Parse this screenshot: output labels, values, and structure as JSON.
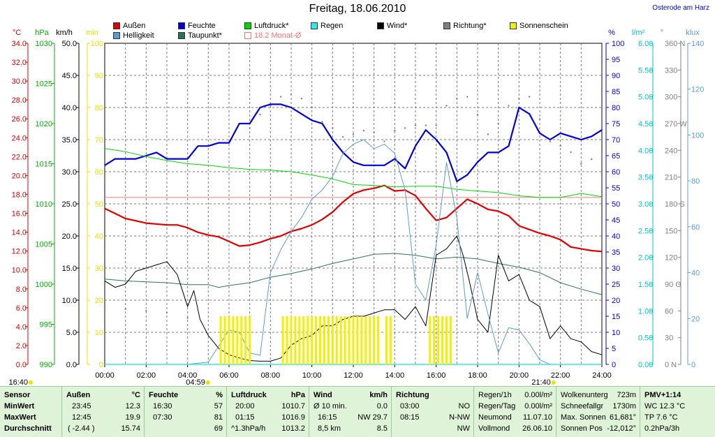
{
  "header": {
    "title": "Freitag, 18.06.2010",
    "location": "Osterode am Harz"
  },
  "legend": [
    {
      "label": "Außen",
      "color": "#e00000"
    },
    {
      "label": "Feuchte",
      "color": "#0000d8"
    },
    {
      "label": "Luftdruck*",
      "color": "#00d800"
    },
    {
      "label": "Regen",
      "color": "#30e8e8"
    },
    {
      "label": "Wind*",
      "color": "#000000"
    },
    {
      "label": "Richtung*",
      "color": "#808080"
    },
    {
      "label": "Sonnenschein",
      "color": "#f0f000"
    },
    {
      "label": "Helligkeit",
      "color": "#5b9bd5"
    },
    {
      "label": "Taupunkt*",
      "color": "#2e7060"
    },
    {
      "label": "18.2 Monat-Ø",
      "color": "#ff8080"
    }
  ],
  "chart_data": {
    "type": "line",
    "title": "Freitag, 18.06.2010",
    "x_range": [
      0,
      24
    ],
    "x_ticks": [
      "00:00",
      "02:00",
      "04:00",
      "06:00",
      "08:00",
      "10:00",
      "12:00",
      "14:00",
      "16:00",
      "18:00",
      "20:00",
      "22:00",
      "24:00"
    ],
    "axes": {
      "temp_c": {
        "label": "°C",
        "ticks": [
          "0.0",
          "2.0",
          "4.0",
          "6.0",
          "8.0",
          "10.0",
          "12.0",
          "14.0",
          "16.0",
          "18.0",
          "20.0",
          "22.0",
          "24.0",
          "26.0",
          "28.0",
          "30.0",
          "32.0",
          "34.0"
        ],
        "range": [
          0,
          35
        ]
      },
      "pressure_hpa": {
        "label": "hPa",
        "ticks": [
          "990",
          "995",
          "1000",
          "1005",
          "1010",
          "1015",
          "1020",
          "1025",
          "1030"
        ],
        "range": [
          990,
          1030
        ]
      },
      "wind_kmh": {
        "label": "km/h",
        "ticks": [
          "0.0",
          "5.0",
          "10.0",
          "15.0",
          "20.0",
          "25.0",
          "30.0",
          "35.0",
          "40.0",
          "45.0",
          "50.0"
        ],
        "range": [
          0,
          50
        ]
      },
      "sun_min": {
        "label": "min",
        "ticks": [
          "0",
          "10",
          "20",
          "30",
          "40",
          "50",
          "60",
          "70",
          "80",
          "90",
          "100"
        ],
        "range": [
          0,
          100
        ]
      },
      "humidity_pct": {
        "label": "%",
        "ticks": [
          "0",
          "5",
          "10",
          "15",
          "20",
          "25",
          "30",
          "35",
          "40",
          "45",
          "50",
          "55",
          "60",
          "65",
          "70",
          "75",
          "80",
          "85",
          "90",
          "95",
          "100"
        ],
        "range": [
          0,
          100
        ]
      },
      "rain_lm2": {
        "label": "l/m²",
        "ticks": [
          "0.00",
          "0.50",
          "1.00",
          "1.50",
          "2.00",
          "2.50",
          "3.00",
          "3.50",
          "4.00",
          "4.50",
          "5.00",
          "5.50",
          "6.00"
        ],
        "range": [
          0,
          6
        ]
      },
      "direction_deg": {
        "label": "°",
        "ticks": [
          "0 N",
          "30",
          "60",
          "90 O",
          "120",
          "150",
          "180 S",
          "210",
          "240",
          "270 W",
          "300",
          "330",
          "360 N"
        ],
        "range": [
          0,
          360
        ]
      },
      "brightness_klux": {
        "label": "klux",
        "ticks": [
          "0",
          "20",
          "40",
          "60",
          "80",
          "100",
          "120",
          "140"
        ],
        "range": [
          0,
          140
        ]
      }
    },
    "series": [
      {
        "name": "Außen",
        "axis": "temp_c",
        "x": [
          0,
          1,
          2,
          3,
          3.5,
          4,
          4.5,
          5,
          5.5,
          6,
          6.5,
          7,
          7.5,
          8,
          8.5,
          9,
          9.5,
          10,
          10.5,
          11,
          11.5,
          12,
          12.5,
          13,
          13.5,
          14,
          14.5,
          15,
          15.5,
          16,
          16.5,
          17,
          17.5,
          18,
          18.5,
          19,
          19.5,
          20,
          20.5,
          21,
          21.5,
          22,
          22.5,
          23,
          23.5,
          24
        ],
        "values": [
          17.0,
          15.9,
          15.4,
          15.2,
          15.2,
          14.9,
          14.4,
          14.1,
          13.9,
          13.4,
          12.9,
          13.0,
          13.3,
          13.7,
          14.0,
          14.5,
          14.8,
          15.2,
          15.8,
          16.6,
          17.7,
          18.6,
          19.0,
          19.2,
          19.5,
          18.9,
          19.0,
          18.4,
          17.0,
          15.7,
          16.0,
          17.0,
          18.0,
          17.5,
          16.9,
          16.7,
          16.2,
          15.1,
          14.7,
          14.3,
          14.0,
          13.6,
          12.8,
          12.6,
          12.4,
          12.3
        ]
      },
      {
        "name": "Feuchte",
        "axis": "humidity_pct",
        "x": [
          0,
          0.5,
          1,
          1.5,
          2,
          2.5,
          3,
          3.5,
          4,
          4.5,
          5,
          5.5,
          6,
          6.5,
          7,
          7.5,
          8,
          8.5,
          9,
          9.5,
          10,
          10.5,
          11,
          11.5,
          12,
          12.5,
          13,
          13.5,
          14,
          14.5,
          15,
          15.5,
          16,
          16.5,
          17,
          17.5,
          18,
          18.5,
          19,
          19.5,
          20,
          20.5,
          21,
          21.5,
          22,
          22.5,
          23,
          23.5,
          24
        ],
        "values": [
          62,
          64,
          64,
          64,
          65,
          66,
          64,
          64,
          64,
          68,
          68,
          69,
          69,
          75,
          75,
          80,
          81,
          81,
          80,
          78,
          76,
          75,
          70,
          66,
          63,
          62,
          62,
          62,
          64,
          61,
          68,
          73,
          70,
          66,
          57,
          59,
          63,
          66,
          66,
          68,
          80,
          78,
          72,
          70,
          72,
          71,
          70,
          71,
          73
        ]
      },
      {
        "name": "Luftdruck*",
        "axis": "pressure_hpa",
        "x": [
          0,
          1,
          2,
          3,
          4,
          5,
          6,
          7,
          8,
          9,
          10,
          11,
          12,
          13,
          14,
          15,
          16,
          17,
          18,
          19,
          20,
          21,
          22,
          23,
          24
        ],
        "values": [
          1016.9,
          1016.5,
          1015.9,
          1015.4,
          1015.0,
          1014.8,
          1014.5,
          1014.3,
          1014.2,
          1014.0,
          1013.6,
          1013.1,
          1012.4,
          1012.3,
          1012.1,
          1012.2,
          1012.2,
          1011.8,
          1011.6,
          1011.4,
          1011.0,
          1010.8,
          1010.8,
          1011.3,
          1010.9
        ]
      },
      {
        "name": "Taupunkt*",
        "axis": "temp_c",
        "x": [
          0,
          1,
          2,
          3,
          4,
          5,
          5.5,
          6,
          7,
          8,
          9,
          10,
          11,
          12,
          13,
          14,
          15,
          16,
          17,
          18,
          19,
          20,
          21,
          22,
          23,
          24
        ],
        "values": [
          9.3,
          9.1,
          9.0,
          8.9,
          8.7,
          8.7,
          8.4,
          8.6,
          8.9,
          9.5,
          9.9,
          10.4,
          11.0,
          11.5,
          12.0,
          12.1,
          11.9,
          11.5,
          11.7,
          11.5,
          11.0,
          10.6,
          10.0,
          8.9,
          8.2,
          7.6
        ]
      },
      {
        "name": "Wind*",
        "axis": "wind_kmh",
        "x": [
          0,
          0.5,
          1,
          1.5,
          2,
          2.5,
          3,
          3.5,
          4,
          4.3,
          4.6,
          5,
          5.5,
          6,
          6.5,
          7,
          7.5,
          8,
          8.5,
          9,
          9.5,
          10,
          10.5,
          11,
          11.5,
          12,
          12.5,
          13,
          13.5,
          14,
          14.5,
          15,
          15.5,
          16,
          16.5,
          17,
          17.3,
          17.6,
          18,
          18.5,
          19,
          19.5,
          20,
          20.5,
          21,
          21.5,
          22,
          22.5,
          23,
          23.5,
          24
        ],
        "values": [
          13.0,
          12.0,
          12.5,
          14.5,
          15.0,
          15.5,
          16.0,
          14.0,
          9.0,
          11.5,
          7.0,
          4.5,
          2.5,
          1.5,
          1.0,
          0.6,
          0.5,
          0.5,
          1.0,
          3.0,
          4.0,
          4.5,
          6.0,
          6.0,
          7.0,
          7.5,
          7.5,
          8.0,
          8.5,
          8.5,
          7.0,
          9.0,
          6.0,
          17.0,
          18.0,
          20.0,
          17.0,
          13.0,
          7.0,
          5.0,
          17.0,
          13.0,
          14.0,
          10.0,
          9.0,
          4.0,
          6.0,
          4.0,
          3.5,
          2.0,
          1.5
        ]
      },
      {
        "name": "Richtung*",
        "axis": "direction_deg",
        "x": [
          0,
          1,
          2,
          3,
          4,
          7,
          7.5,
          8,
          8.5,
          9,
          9.5,
          10,
          10.5,
          11,
          11.5,
          12,
          12.5,
          13,
          13.5,
          14,
          14.5,
          15,
          15.5,
          16,
          16.5,
          17,
          17.5,
          18,
          18.5,
          19,
          19.5,
          20,
          20.5,
          21,
          21.5,
          22,
          22.5,
          23,
          23.5,
          24
        ],
        "values": [
          60,
          62,
          60,
          58,
          52,
          265,
          280,
          290,
          300,
          303,
          298,
          288,
          272,
          265,
          255,
          258,
          262,
          260,
          250,
          262,
          265,
          268,
          268,
          268,
          290,
          298,
          300,
          280,
          258,
          270,
          290,
          298,
          300,
          275,
          250,
          245,
          238,
          225,
          230,
          235
        ]
      },
      {
        "name": "Helligkeit",
        "axis": "brightness_klux",
        "x": [
          0,
          1,
          2,
          3,
          4,
          5,
          5.5,
          6,
          6.5,
          7,
          7.5,
          8,
          8.5,
          9,
          9.5,
          10,
          10.5,
          11,
          11.5,
          12,
          12.5,
          13,
          13.5,
          14,
          14.5,
          15,
          15.5,
          16,
          16.5,
          17,
          17.5,
          18,
          18.5,
          19,
          19.5,
          20,
          20.5,
          21,
          21.5,
          22,
          22.5,
          23,
          23.5,
          24
        ],
        "values": [
          0,
          0,
          0,
          0,
          0,
          1,
          8,
          15,
          14,
          5,
          4,
          40,
          50,
          58,
          64,
          72,
          76,
          82,
          92,
          96,
          98,
          94,
          96,
          92,
          76,
          35,
          28,
          52,
          88,
          64,
          20,
          40,
          22,
          5,
          16,
          15,
          9,
          2,
          0,
          0,
          0,
          0,
          0,
          0
        ]
      },
      {
        "name": "Regen",
        "axis": "rain_lm2",
        "x": [
          0,
          24
        ],
        "values": [
          0.0,
          0.0
        ]
      },
      {
        "name": "Sonnenschein",
        "axis": "sun_min",
        "x": [
          5.6,
          5.8,
          6.0,
          6.2,
          6.4,
          6.6,
          6.8,
          7.0,
          8.6,
          8.8,
          9.0,
          9.2,
          9.4,
          9.6,
          9.8,
          10.0,
          10.2,
          10.4,
          10.6,
          10.8,
          11.0,
          11.2,
          11.4,
          11.6,
          11.8,
          12.0,
          12.2,
          12.4,
          12.6,
          12.8,
          13.0,
          13.2,
          13.6,
          13.8,
          15.7,
          15.9,
          16.1,
          16.3,
          16.5,
          16.7
        ],
        "values": [
          15,
          15,
          15,
          15,
          15,
          15,
          15,
          15,
          15,
          15,
          15,
          15,
          15,
          15,
          15,
          15,
          15,
          15,
          15,
          15,
          15,
          15,
          15,
          15,
          15,
          15,
          15,
          15,
          15,
          15,
          15,
          15,
          15,
          15,
          15,
          15,
          15,
          15,
          15,
          15
        ]
      }
    ],
    "reference_lines": [
      {
        "name": "18.2 Monat-Ø",
        "axis": "temp_c",
        "value": 18.2
      }
    ],
    "markers": {
      "sunrise_left": "16:40",
      "sunrise": "04:59",
      "sunset": "21:40"
    }
  },
  "panel": {
    "sensor": {
      "title": "Sensor",
      "rows": [
        "MinWert",
        "MaxWert",
        "Durchschnitt"
      ]
    },
    "aussen": {
      "title": "Außen",
      "unit": "°C",
      "times": [
        "23:45",
        "12:45",
        "( -2.44 )"
      ],
      "values": [
        "12.3",
        "19.9",
        "15.74"
      ]
    },
    "feuchte": {
      "title": "Feuchte",
      "unit": "%",
      "times": [
        "16:30",
        "07:30",
        ""
      ],
      "values": [
        "57",
        "81",
        "69"
      ]
    },
    "luftdruck": {
      "title": "Luftdruck",
      "unit": "hPa",
      "times": [
        "20:00",
        "01:15",
        "^1.3hPa/h"
      ],
      "values": [
        "1010.7",
        "1016.9",
        "1013.2"
      ]
    },
    "wind": {
      "title": "Wind",
      "unit": "km/h",
      "times": [
        "Ø 10 min.",
        "16:15",
        "8,5 km"
      ],
      "values": [
        "0.0",
        "NW 29.7",
        "8.5"
      ]
    },
    "richtung": {
      "title": "Richtung",
      "times": [
        "03:00",
        "08:15",
        ""
      ],
      "values": [
        "NO",
        "N-NW",
        "NW"
      ]
    },
    "regen": {
      "labels": [
        "Regen/1h",
        "Regen/Tag",
        "Neumond",
        "Vollmond"
      ],
      "values": [
        "0.00l/m²",
        "0.00l/m²",
        "11.07.10",
        "26.06.10"
      ]
    },
    "wolken": {
      "labels": [
        "Wolkenunterg",
        "Schneefallgr",
        "Max. Sonnen",
        "Sonnen Pos"
      ],
      "values": [
        "723m",
        "1730m",
        "61,681°",
        "-12,012°"
      ]
    },
    "pmv": {
      "title": "PMV+1:14",
      "lines": [
        "WC 12.3 °C",
        "TP 7.6 °C",
        "0.2hPa/3h"
      ]
    }
  }
}
